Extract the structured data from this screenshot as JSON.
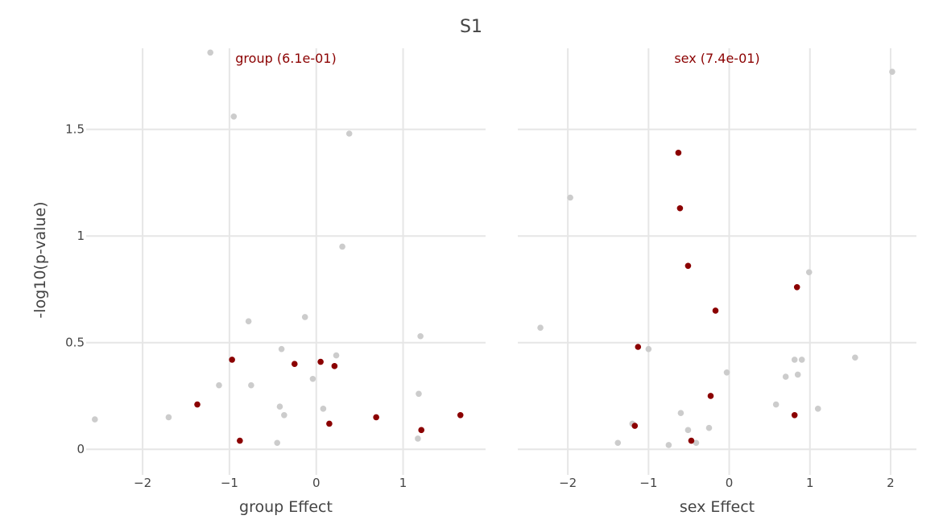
{
  "title": "S1",
  "colors": {
    "highlight": "#8b0000",
    "background_point": "#cccccc",
    "panel_title": "#8b0000",
    "text": "#444444"
  },
  "chart_data": [
    {
      "type": "scatter",
      "panel_title": "group (6.1e-01)",
      "xlabel": "group Effect",
      "ylabel": "-log10(p-value)",
      "xlim": [
        -2.65,
        1.95
      ],
      "ylim": [
        -0.12,
        1.88
      ],
      "xticks": [
        -2,
        -1,
        0,
        1
      ],
      "xtick_labels": [
        "−2",
        "−1",
        "0",
        "1"
      ],
      "yticks": [
        0,
        0.5,
        1,
        1.5
      ],
      "ytick_labels": [
        "0",
        "0.5",
        "1",
        "1.5"
      ],
      "series": [
        {
          "name": "other",
          "color": "#cccccc",
          "points": [
            [
              -1.22,
              1.86
            ],
            [
              -0.95,
              1.56
            ],
            [
              0.38,
              1.48
            ],
            [
              0.3,
              0.95
            ],
            [
              -0.78,
              0.6
            ],
            [
              -0.13,
              0.62
            ],
            [
              1.2,
              0.53
            ],
            [
              -0.4,
              0.47
            ],
            [
              0.23,
              0.44
            ],
            [
              -0.04,
              0.33
            ],
            [
              -1.12,
              0.3
            ],
            [
              -0.75,
              0.3
            ],
            [
              1.18,
              0.26
            ],
            [
              -0.42,
              0.2
            ],
            [
              -0.37,
              0.16
            ],
            [
              0.08,
              0.19
            ],
            [
              -1.7,
              0.15
            ],
            [
              -2.55,
              0.14
            ],
            [
              1.17,
              0.05
            ],
            [
              -0.45,
              0.03
            ]
          ]
        },
        {
          "name": "highlighted",
          "color": "#8b0000",
          "points": [
            [
              -0.97,
              0.42
            ],
            [
              0.05,
              0.41
            ],
            [
              -0.25,
              0.4
            ],
            [
              0.21,
              0.39
            ],
            [
              -1.37,
              0.21
            ],
            [
              0.69,
              0.15
            ],
            [
              1.66,
              0.16
            ],
            [
              0.15,
              0.12
            ],
            [
              1.21,
              0.09
            ],
            [
              -0.88,
              0.04
            ]
          ]
        }
      ]
    },
    {
      "type": "scatter",
      "panel_title": "sex (7.4e-01)",
      "xlabel": "sex Effect",
      "ylabel": "",
      "xlim": [
        -2.62,
        2.32
      ],
      "ylim": [
        -0.12,
        1.88
      ],
      "xticks": [
        -2,
        -1,
        0,
        1,
        2
      ],
      "xtick_labels": [
        "−2",
        "−1",
        "0",
        "1",
        "2"
      ],
      "yticks": [
        0,
        0.5,
        1,
        1.5
      ],
      "ytick_labels": [
        "0",
        "0.5",
        "1",
        "1.5"
      ],
      "series": [
        {
          "name": "other",
          "color": "#cccccc",
          "points": [
            [
              2.02,
              1.77
            ],
            [
              -1.97,
              1.18
            ],
            [
              0.99,
              0.83
            ],
            [
              -2.34,
              0.57
            ],
            [
              -1.0,
              0.47
            ],
            [
              1.56,
              0.43
            ],
            [
              0.81,
              0.42
            ],
            [
              0.9,
              0.42
            ],
            [
              -0.03,
              0.36
            ],
            [
              0.85,
              0.35
            ],
            [
              0.7,
              0.34
            ],
            [
              0.58,
              0.21
            ],
            [
              1.1,
              0.19
            ],
            [
              -0.6,
              0.17
            ],
            [
              -1.2,
              0.12
            ],
            [
              -0.25,
              0.1
            ],
            [
              -0.51,
              0.09
            ],
            [
              -1.38,
              0.03
            ],
            [
              -0.75,
              0.02
            ],
            [
              -0.41,
              0.03
            ]
          ]
        },
        {
          "name": "highlighted",
          "color": "#8b0000",
          "points": [
            [
              -0.63,
              1.39
            ],
            [
              -0.61,
              1.13
            ],
            [
              -0.51,
              0.86
            ],
            [
              0.84,
              0.76
            ],
            [
              -0.17,
              0.65
            ],
            [
              -1.13,
              0.48
            ],
            [
              -0.23,
              0.25
            ],
            [
              0.81,
              0.16
            ],
            [
              -1.17,
              0.11
            ],
            [
              -0.47,
              0.04
            ]
          ]
        }
      ]
    }
  ]
}
